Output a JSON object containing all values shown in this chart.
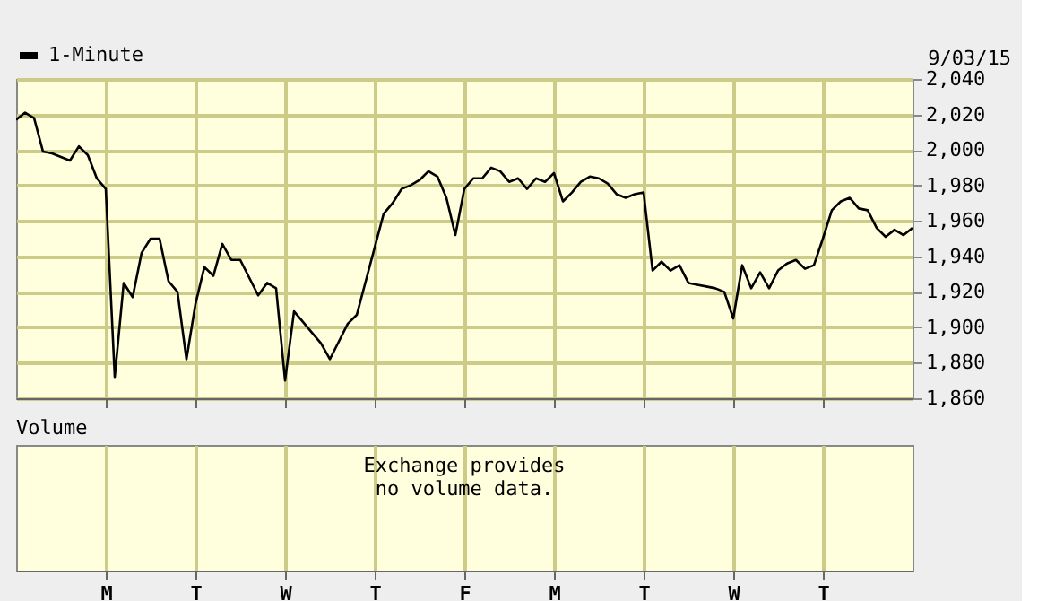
{
  "chart_data": [
    {
      "type": "line",
      "annotations": [
        "9/03/15"
      ],
      "ylim": [
        1860,
        2040
      ],
      "categories": [
        null,
        null,
        null,
        null,
        null,
        null,
        null,
        null,
        null,
        null,
        null,
        null,
        null,
        null,
        null,
        null,
        null,
        null,
        null,
        null,
        null,
        null,
        null,
        null,
        null,
        null,
        null,
        null,
        null,
        null,
        null,
        null,
        null,
        null,
        null,
        null,
        null,
        null,
        null,
        null,
        null,
        null,
        null,
        null,
        null,
        null,
        null,
        null,
        null,
        null,
        null,
        null,
        null,
        null,
        null,
        null,
        null,
        null,
        null,
        null,
        null,
        null,
        null,
        null,
        null,
        null,
        null,
        null,
        null,
        null,
        null,
        null,
        null,
        null,
        null,
        null,
        null,
        null,
        null,
        null,
        null,
        null,
        null,
        null,
        null,
        null,
        null,
        null,
        null,
        null,
        null,
        null,
        null,
        null,
        null,
        null,
        null,
        null,
        null,
        null,
        null
      ],
      "yticks": [
        {
          "value": 1860,
          "label": "1,860"
        },
        {
          "value": 1880,
          "label": "1,880"
        },
        {
          "value": 1900,
          "label": "1,900"
        },
        {
          "value": 1920,
          "label": "1,920"
        },
        {
          "value": 1940,
          "label": "1,940"
        },
        {
          "value": 1960,
          "label": "1,960"
        },
        {
          "value": 1980,
          "label": "1,980"
        },
        {
          "value": 2000,
          "label": "2,000"
        },
        {
          "value": 2020,
          "label": "2,020"
        },
        {
          "value": 2040,
          "label": "2,040"
        }
      ],
      "grid": true,
      "legend": "top left",
      "tick_labels": "y",
      "series": [
        {
          "name": "1-Minute",
          "color": "#000000",
          "values": [
            2017,
            2021,
            2018,
            1999,
            1998,
            1996,
            1994,
            2002,
            1997,
            1984,
            1978,
            1872,
            1925,
            1917,
            1942,
            1950,
            1950,
            1926,
            1920,
            1882,
            1913,
            1934,
            1929,
            1947,
            1938,
            1938,
            1928,
            1918,
            1925,
            1922,
            1870,
            1909,
            1903,
            1897,
            1891,
            1882,
            1892,
            1902,
            1907,
            1926,
            1945,
            1964,
            1970,
            1978,
            1980,
            1983,
            1988,
            1985,
            1973,
            1952,
            1978,
            1984,
            1984,
            1990,
            1988,
            1982,
            1984,
            1978,
            1984,
            1982,
            1987,
            1971,
            1976,
            1982,
            1985,
            1984,
            1981,
            1975,
            1973,
            1975,
            1976,
            1932,
            1937,
            1932,
            1935,
            1925,
            1924,
            1923,
            1922,
            1920,
            1905,
            1935,
            1922,
            1931,
            1922,
            1932,
            1936,
            1938,
            1933,
            1935,
            1950,
            1966,
            1971,
            1973,
            1967,
            1966,
            1956,
            1951,
            1955,
            1952,
            1956
          ]
        }
      ]
    },
    {
      "type": "other",
      "title": "Volume",
      "annotations": [
        "Exchange provides\nno volume data."
      ],
      "categories": [
        null,
        null,
        null,
        null,
        null,
        null,
        null,
        null,
        null,
        null,
        "M",
        null,
        null,
        null,
        null,
        null,
        null,
        null,
        null,
        null,
        "T",
        null,
        null,
        null,
        null,
        null,
        null,
        null,
        null,
        null,
        "W",
        null,
        null,
        null,
        null,
        null,
        null,
        null,
        null,
        null,
        "T",
        null,
        null,
        null,
        null,
        null,
        null,
        null,
        null,
        null,
        "F",
        null,
        null,
        null,
        null,
        null,
        null,
        null,
        null,
        null,
        "M",
        null,
        null,
        null,
        null,
        null,
        null,
        null,
        null,
        null,
        "T",
        null,
        null,
        null,
        null,
        null,
        null,
        null,
        null,
        null,
        "W",
        null,
        null,
        null,
        null,
        null,
        null,
        null,
        null,
        null,
        "T",
        null,
        null,
        null,
        null,
        null,
        null,
        null,
        null,
        null,
        null
      ]
    }
  ]
}
